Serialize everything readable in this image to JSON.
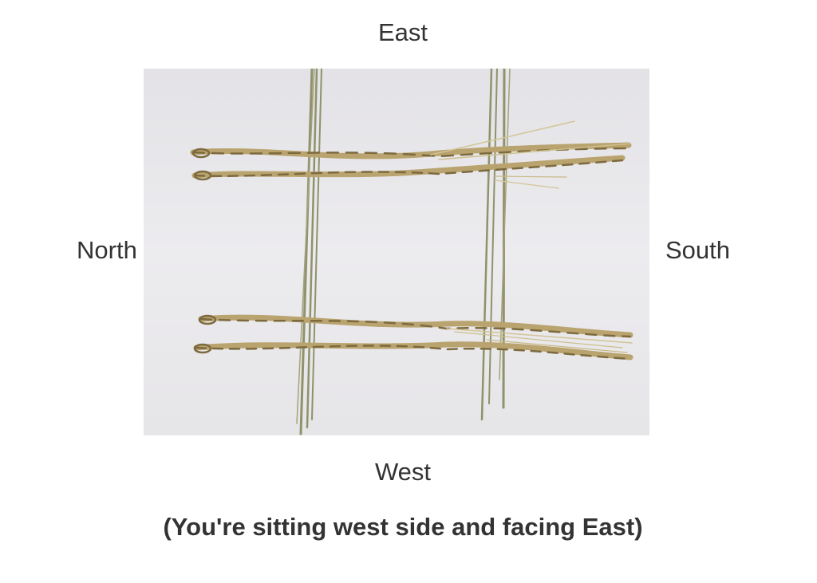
{
  "labels": {
    "east": "East",
    "west": "West",
    "north": "North",
    "south": "South"
  },
  "caption": "(You're sitting west side and facing East)",
  "image": {
    "subject": "straw-arrangement-photo",
    "background_color": "#e6e5e8",
    "straw_color": "#b9a36e",
    "straw_dark_color": "#7d6a3f",
    "stick_color": "#8f926a"
  }
}
